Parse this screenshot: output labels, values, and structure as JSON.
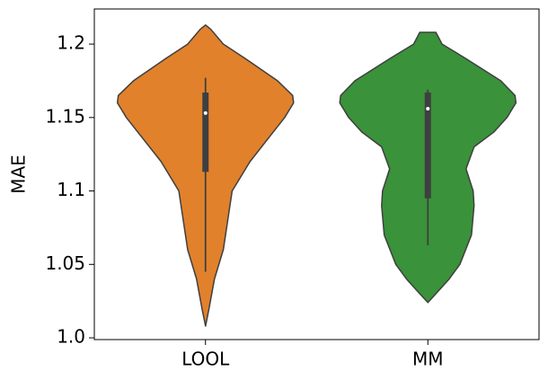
{
  "chart_data": {
    "type": "violin",
    "ylabel": "MAE",
    "categories": [
      "LOOL",
      "MM"
    ],
    "ylim": [
      0.9988,
      1.2239
    ],
    "yticks": [
      {
        "value": 1,
        "label": "1.0"
      },
      1.05,
      1.1,
      1.15,
      1.2
    ],
    "violins": [
      {
        "color": "#e1812c",
        "kde_y": [
          1.008,
          1.02,
          1.04,
          1.06,
          1.08,
          1.1,
          1.12,
          1.14,
          1.15,
          1.16,
          1.165,
          1.175,
          1.19,
          1.2,
          1.21,
          1.213
        ],
        "kde_width": [
          0,
          0.04,
          0.1,
          0.2,
          0.25,
          0.3,
          0.5,
          0.76,
          0.89,
          0.99,
          0.98,
          0.81,
          0.45,
          0.2,
          0.06,
          0
        ],
        "whisker_low": 1.045,
        "q1": 1.113,
        "median": 1.153,
        "q3": 1.167,
        "whisker_high": 1.177
      },
      {
        "color": "#3a923a",
        "kde_y": [
          1.024,
          1.03,
          1.04,
          1.05,
          1.07,
          1.09,
          1.1,
          1.115,
          1.13,
          1.14,
          1.15,
          1.16,
          1.165,
          1.175,
          1.19,
          1.2,
          1.208
        ],
        "kde_width": [
          0,
          0.09,
          0.24,
          0.36,
          0.49,
          0.52,
          0.51,
          0.43,
          0.52,
          0.74,
          0.89,
          0.99,
          0.98,
          0.82,
          0.43,
          0.16,
          0.09
        ],
        "whisker_low": 1.063,
        "q1": 1.095,
        "median": 1.156,
        "q3": 1.167,
        "whisker_high": 1.169
      }
    ]
  }
}
